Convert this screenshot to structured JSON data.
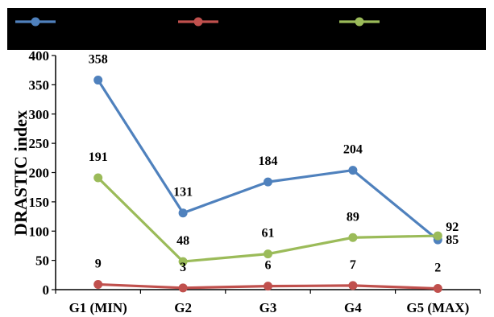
{
  "chart_data": {
    "type": "line",
    "categories": [
      "G1 (MIN)",
      "G2",
      "G3",
      "G4",
      "G5 (MAX)"
    ],
    "ylabel": "DRASTIC index",
    "xlabel": "",
    "title": "",
    "ylim": [
      0,
      400
    ],
    "yticks": [
      0,
      50,
      100,
      150,
      200,
      250,
      300,
      350,
      400
    ],
    "grid": false,
    "legend": "top",
    "series": [
      {
        "color": "#4f81bd",
        "values": [
          358,
          131,
          184,
          204,
          85
        ],
        "labels": [
          "358",
          "131",
          "184",
          "204",
          "85"
        ]
      },
      {
        "color": "#c0504d",
        "values": [
          9,
          3,
          6,
          7,
          2
        ],
        "labels": [
          "9",
          "3",
          "6",
          "7",
          "2"
        ]
      },
      {
        "color": "#9bbb59",
        "values": [
          191,
          48,
          61,
          89,
          92
        ],
        "labels": [
          "191",
          "48",
          "61",
          "89",
          "92"
        ]
      }
    ]
  }
}
